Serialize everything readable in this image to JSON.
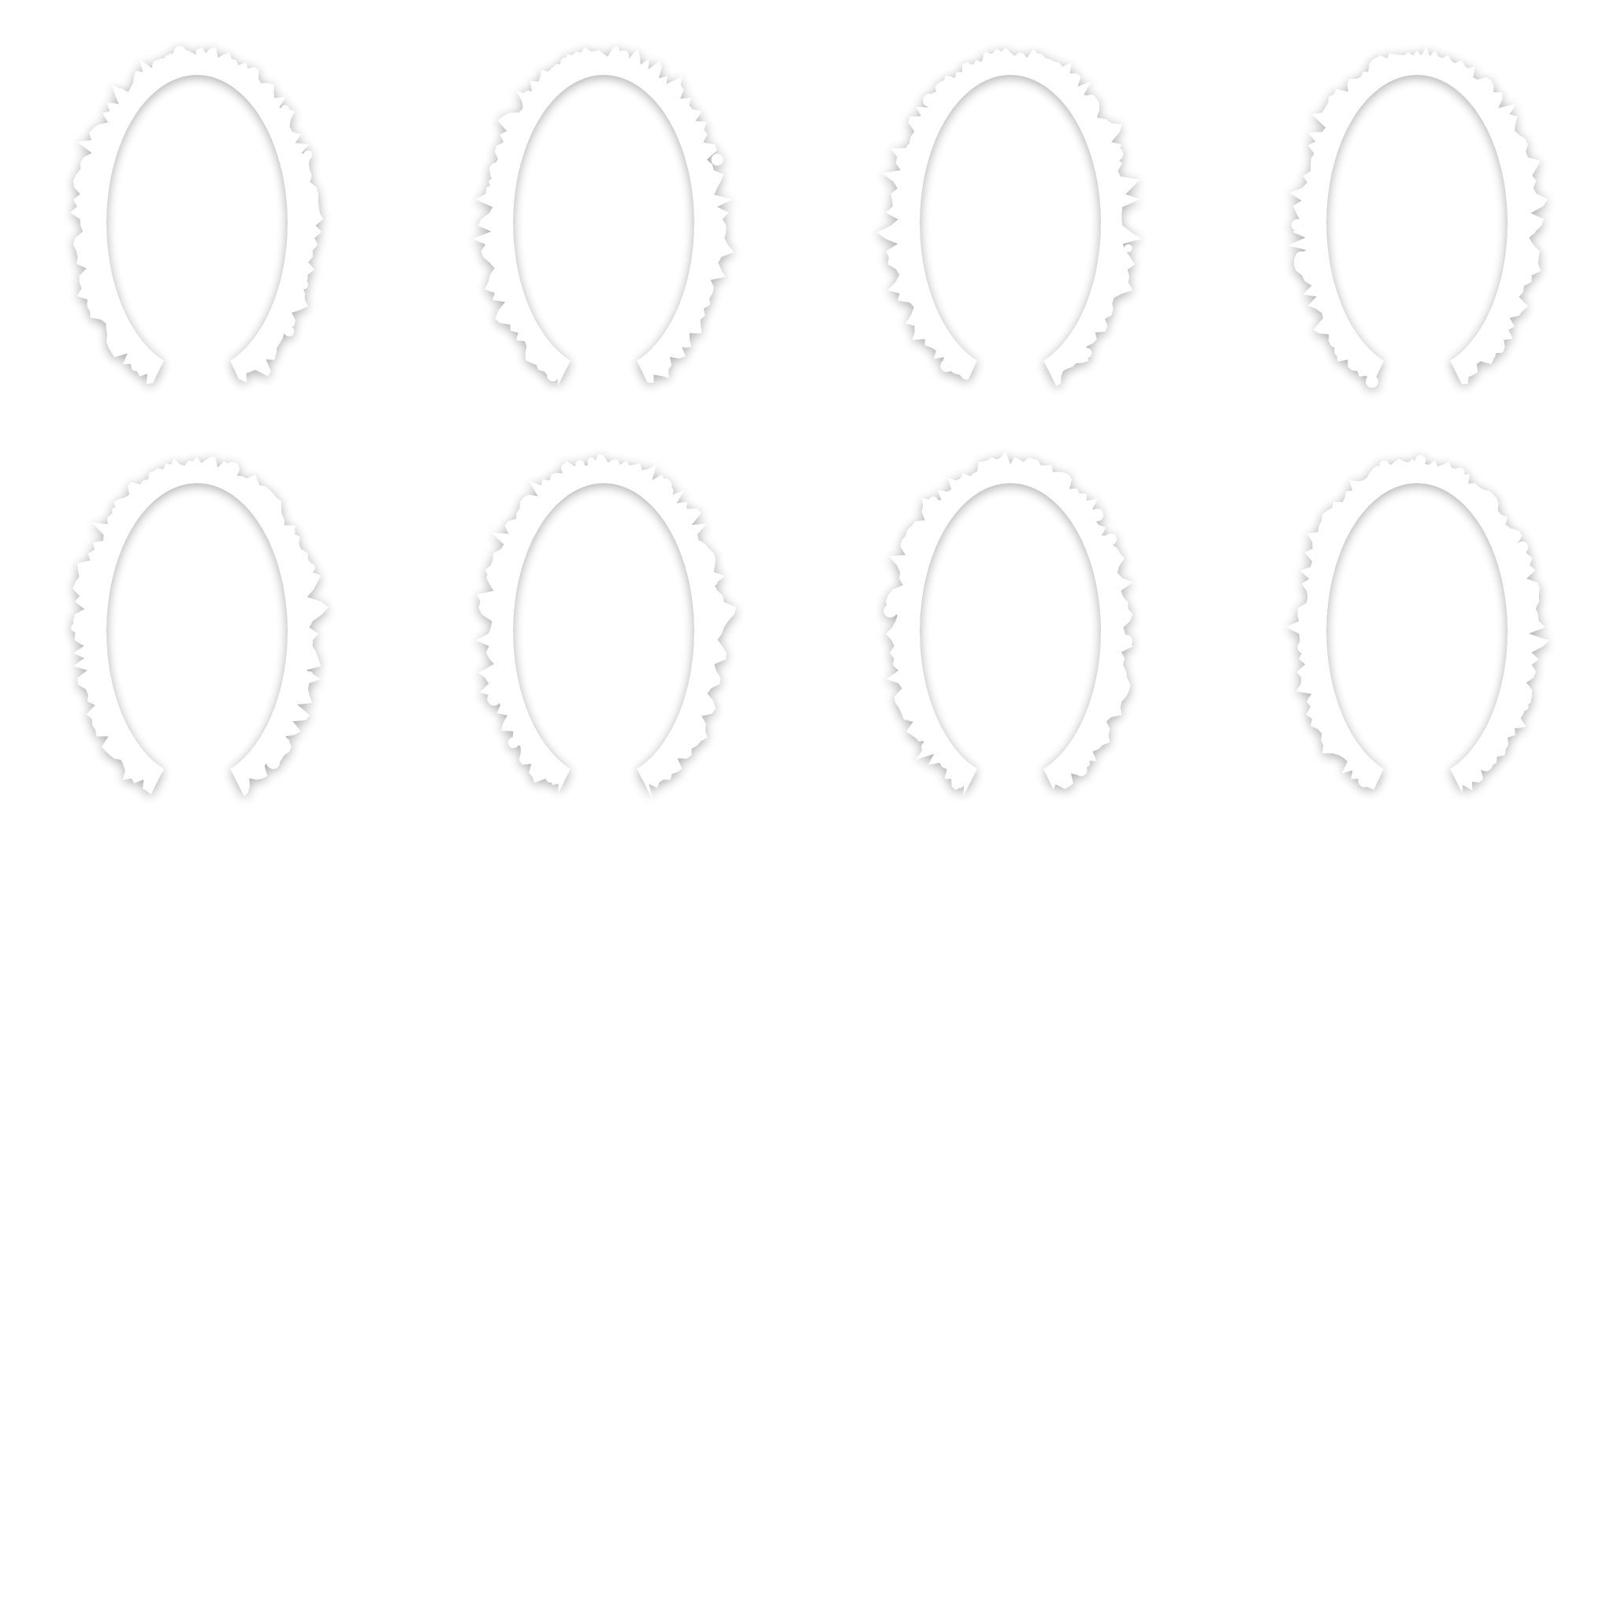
{
  "sprite_sheet": {
    "background_color": "#ffffff",
    "frame_color": "#ffffff",
    "shadow_color": "#000000",
    "columns": 4,
    "rows": 2,
    "frames": [
      {
        "icon": "ragged-oval-ring-icon",
        "seed": 1
      },
      {
        "icon": "ragged-oval-ring-icon",
        "seed": 2
      },
      {
        "icon": "ragged-oval-ring-icon",
        "seed": 3
      },
      {
        "icon": "ragged-oval-ring-icon",
        "seed": 4
      },
      {
        "icon": "ragged-oval-ring-icon",
        "seed": 5
      },
      {
        "icon": "ragged-oval-ring-icon",
        "seed": 6
      },
      {
        "icon": "ragged-oval-ring-icon",
        "seed": 7
      },
      {
        "icon": "ragged-oval-ring-icon",
        "seed": 8
      }
    ]
  }
}
